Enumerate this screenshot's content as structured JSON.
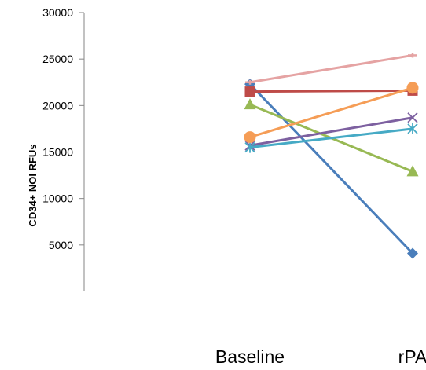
{
  "chart_data": {
    "type": "line",
    "title": "",
    "xlabel": "",
    "ylabel": "CD34+ NOI RFUs",
    "categories": [
      "Baseline",
      "rPA"
    ],
    "ylim": [
      0,
      30000
    ],
    "yticks": [
      5000,
      10000,
      15000,
      20000,
      25000,
      30000
    ],
    "grid": false,
    "legend": "none",
    "series": [
      {
        "values": [
          22300,
          4100
        ],
        "color": "#4A7EBB",
        "marker": "diamond"
      },
      {
        "values": [
          21500,
          21600
        ],
        "color": "#BE4B48",
        "marker": "square"
      },
      {
        "values": [
          20100,
          12900
        ],
        "color": "#98B954",
        "marker": "triangle"
      },
      {
        "values": [
          15700,
          18700
        ],
        "color": "#7D60A0",
        "marker": "x"
      },
      {
        "values": [
          15500,
          17500
        ],
        "color": "#46AAC5",
        "marker": "star"
      },
      {
        "values": [
          16600,
          21900
        ],
        "color": "#F59D56",
        "marker": "circle"
      },
      {
        "values": [
          22500,
          25400
        ],
        "color": "#E5A3A3",
        "marker": "plus"
      }
    ]
  }
}
